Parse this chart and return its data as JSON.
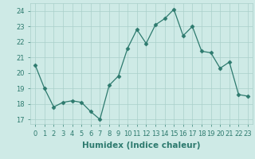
{
  "x": [
    0,
    1,
    2,
    3,
    4,
    5,
    6,
    7,
    8,
    9,
    10,
    11,
    12,
    13,
    14,
    15,
    16,
    17,
    18,
    19,
    20,
    21,
    22,
    23
  ],
  "y": [
    20.5,
    19.0,
    17.8,
    18.1,
    18.2,
    18.1,
    17.5,
    17.0,
    19.2,
    19.8,
    21.6,
    22.8,
    21.9,
    23.1,
    23.5,
    24.1,
    22.4,
    23.0,
    21.4,
    21.3,
    20.3,
    20.7,
    18.6,
    18.5
  ],
  "xlabel": "Humidex (Indice chaleur)",
  "ylim": [
    16.7,
    24.5
  ],
  "yticks": [
    17,
    18,
    19,
    20,
    21,
    22,
    23,
    24
  ],
  "xticks": [
    0,
    1,
    2,
    3,
    4,
    5,
    6,
    7,
    8,
    9,
    10,
    11,
    12,
    13,
    14,
    15,
    16,
    17,
    18,
    19,
    20,
    21,
    22,
    23
  ],
  "line_color": "#2d7a6e",
  "marker": "D",
  "marker_size": 2.5,
  "bg_color": "#ceeae6",
  "grid_color": "#aacfca",
  "axis_color": "#2d7a6e",
  "label_fontsize": 7.5,
  "tick_fontsize": 6.0
}
